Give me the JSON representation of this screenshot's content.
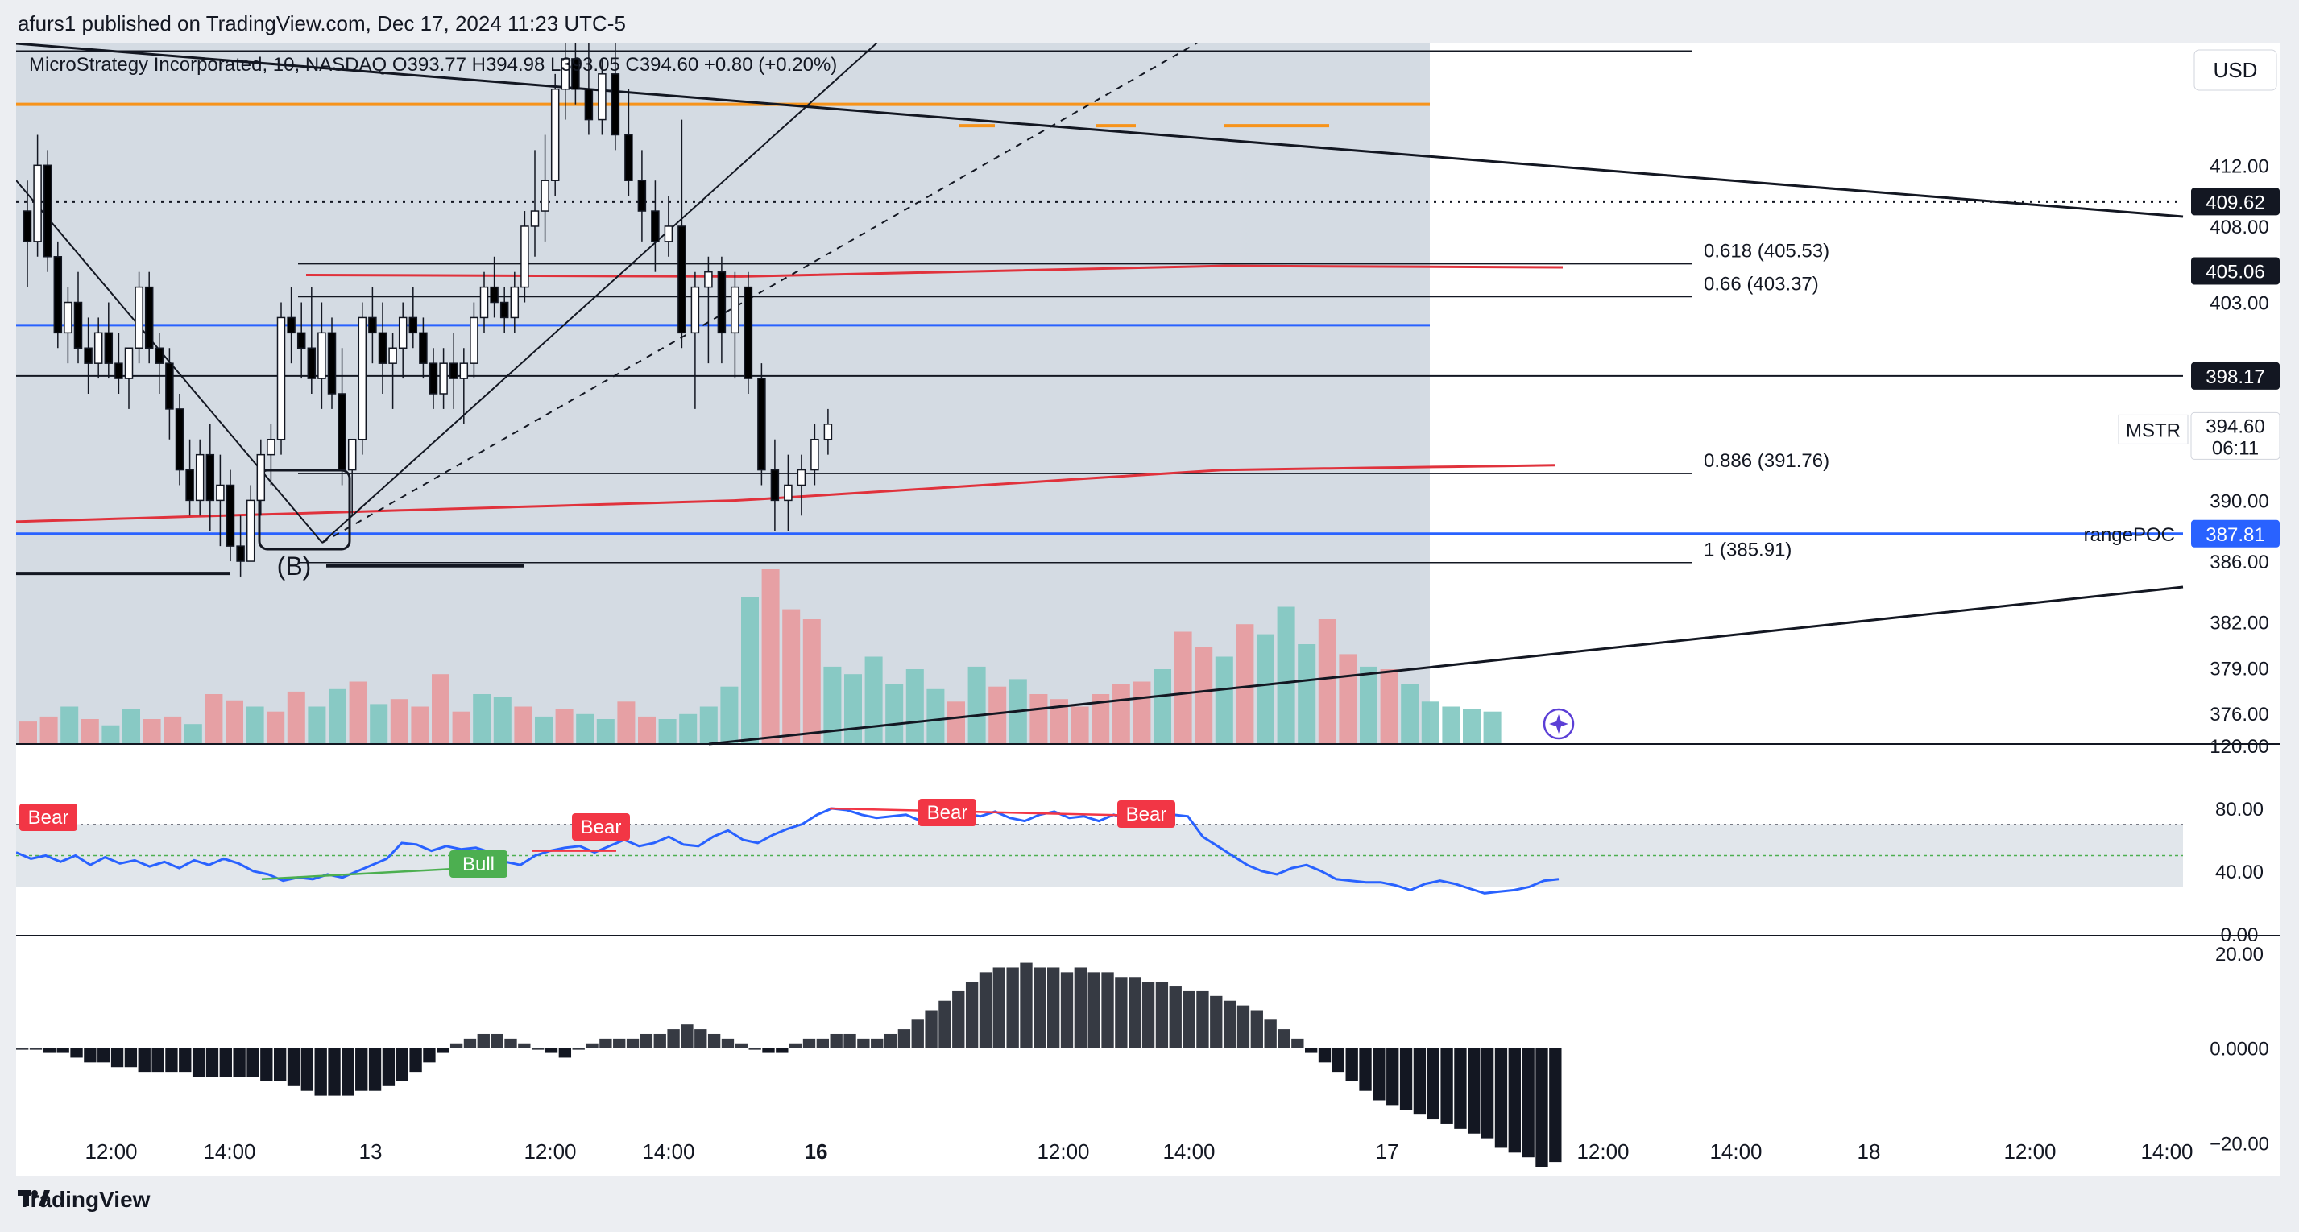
{
  "header": {
    "caption": "afurs1 published on TradingView.com, Dec 17, 2024 11:23 UTC-5"
  },
  "legend": {
    "symbol_line": "MicroStrategy Incorporated, 10, NASDAQ",
    "open": "O393.77",
    "high": "H394.98",
    "low": "L393.05",
    "close": "C394.60",
    "change": "+0.80 (+0.20%)"
  },
  "currency_button": "USD",
  "footer": {
    "brand": "TradingView"
  },
  "colors": {
    "up_candle": "#ffffff",
    "down_candle": "#000000",
    "ma_red": "#e0323c",
    "level_blue": "#2962ff",
    "orange_level": "#f7931a",
    "vol_up": "#7fc6c0",
    "vol_down": "#e8999c",
    "rsi_line": "#2962ff",
    "bear_badge": "#f23645",
    "bull_badge": "#4caf50",
    "shade": "#d4dbe3"
  },
  "chart_data": {
    "type": "candlestick",
    "symbol": "MSTR",
    "interval": "10",
    "exchange": "NASDAQ",
    "price_axis": {
      "range": [
        374,
        420
      ],
      "ticks": [
        "412.00",
        "408.00",
        "403.00",
        "390.00",
        "386.00",
        "382.00",
        "379.00",
        "376.00"
      ]
    },
    "time_axis": {
      "ticks": [
        "12:00",
        "14:00",
        "13",
        "12:00",
        "14:00",
        "16",
        "12:00",
        "14:00",
        "17",
        "12:00",
        "14:00",
        "18",
        "12:00",
        "14:00"
      ]
    },
    "price_labels": [
      {
        "text": "409.62",
        "value": 409.62,
        "style": "dark"
      },
      {
        "text": "405.06",
        "value": 405.06,
        "style": "dark"
      },
      {
        "text": "398.17",
        "value": 398.17,
        "style": "dark"
      },
      {
        "text": "394.60",
        "value": 394.6,
        "style": "light",
        "sub": "06:11",
        "tag": "MSTR"
      },
      {
        "text": "387.81",
        "value": 387.81,
        "style": "blue",
        "tag": "rangePOC"
      }
    ],
    "fib_levels": [
      {
        "label": "0.618 (405.53)",
        "value": 405.53
      },
      {
        "label": "0.66 (403.37)",
        "value": 403.37
      },
      {
        "label": "0.886 (391.76)",
        "value": 391.76
      },
      {
        "label": "1 (385.91)",
        "value": 385.91
      }
    ],
    "horizontal_levels": {
      "blue_upper": 401.5,
      "blue_poc": 387.81,
      "black_398": 398.17,
      "orange": 416.0,
      "dotted": 409.62,
      "fib_top": 419.5
    },
    "annotations": [
      {
        "text": "(B)"
      }
    ],
    "candles": [
      [
        409,
        411,
        404,
        407
      ],
      [
        407,
        414,
        406,
        412
      ],
      [
        412,
        413,
        405,
        406
      ],
      [
        406,
        407,
        400,
        401
      ],
      [
        401,
        404,
        399,
        403
      ],
      [
        403,
        405,
        399,
        400
      ],
      [
        400,
        402,
        397,
        399
      ],
      [
        399,
        402,
        398,
        401
      ],
      [
        401,
        403,
        398,
        399
      ],
      [
        399,
        401,
        397,
        398
      ],
      [
        398,
        400,
        396,
        400
      ],
      [
        400,
        405,
        399,
        404
      ],
      [
        404,
        405,
        399,
        400
      ],
      [
        400,
        401,
        397,
        399
      ],
      [
        399,
        400,
        394,
        396
      ],
      [
        396,
        397,
        391,
        392
      ],
      [
        392,
        394,
        389,
        390
      ],
      [
        390,
        394,
        389,
        393
      ],
      [
        393,
        395,
        388,
        390
      ],
      [
        390,
        393,
        387,
        391
      ],
      [
        391,
        392,
        386,
        387
      ],
      [
        387,
        389,
        385,
        386
      ],
      [
        386,
        391,
        386,
        390
      ],
      [
        390,
        394,
        389,
        393
      ],
      [
        393,
        395,
        391,
        394
      ],
      [
        394,
        403,
        393,
        402
      ],
      [
        402,
        404,
        399,
        401
      ],
      [
        401,
        403,
        398,
        400
      ],
      [
        400,
        404,
        397,
        398
      ],
      [
        398,
        403,
        396,
        401
      ],
      [
        401,
        402,
        396,
        397
      ],
      [
        397,
        400,
        391,
        392
      ],
      [
        392,
        394,
        389,
        394
      ],
      [
        394,
        403,
        393,
        402
      ],
      [
        402,
        404,
        399,
        401
      ],
      [
        401,
        403,
        397,
        399
      ],
      [
        399,
        401,
        396,
        400
      ],
      [
        400,
        403,
        398,
        402
      ],
      [
        402,
        404,
        400,
        401
      ],
      [
        401,
        402,
        398,
        399
      ],
      [
        399,
        400,
        396,
        397
      ],
      [
        397,
        400,
        396,
        399
      ],
      [
        399,
        401,
        396,
        398
      ],
      [
        398,
        400,
        395,
        399
      ],
      [
        399,
        403,
        398,
        402
      ],
      [
        402,
        405,
        401,
        404
      ],
      [
        404,
        406,
        402,
        403
      ],
      [
        403,
        404,
        401,
        402
      ],
      [
        402,
        405,
        401,
        404
      ],
      [
        404,
        409,
        403,
        408
      ],
      [
        408,
        413,
        406,
        409
      ],
      [
        409,
        414,
        407,
        411
      ],
      [
        411,
        418,
        410,
        417
      ],
      [
        417,
        420,
        415,
        419
      ],
      [
        419,
        420,
        416,
        417
      ],
      [
        417,
        420,
        414,
        415
      ],
      [
        415,
        419,
        414,
        418
      ],
      [
        418,
        420,
        413,
        414
      ],
      [
        414,
        417,
        410,
        411
      ],
      [
        411,
        413,
        407,
        409
      ],
      [
        409,
        411,
        405,
        407
      ],
      [
        407,
        410,
        406,
        408
      ],
      [
        408,
        415,
        400,
        401
      ],
      [
        401,
        405,
        396,
        404
      ],
      [
        404,
        406,
        399,
        405
      ],
      [
        405,
        406,
        399,
        401
      ],
      [
        401,
        405,
        398,
        404
      ],
      [
        404,
        405,
        397,
        398
      ],
      [
        398,
        399,
        391,
        392
      ],
      [
        392,
        394,
        388,
        390
      ],
      [
        390,
        393,
        388,
        391
      ],
      [
        391,
        393,
        389,
        392
      ],
      [
        392,
        395,
        391,
        394
      ],
      [
        394,
        396,
        393,
        395
      ]
    ],
    "volume": [
      {
        "v": 18,
        "dir": "down"
      },
      {
        "v": 22,
        "dir": "down"
      },
      {
        "v": 30,
        "dir": "up"
      },
      {
        "v": 20,
        "dir": "down"
      },
      {
        "v": 15,
        "dir": "up"
      },
      {
        "v": 28,
        "dir": "up"
      },
      {
        "v": 20,
        "dir": "down"
      },
      {
        "v": 22,
        "dir": "down"
      },
      {
        "v": 16,
        "dir": "up"
      },
      {
        "v": 40,
        "dir": "down"
      },
      {
        "v": 35,
        "dir": "down"
      },
      {
        "v": 30,
        "dir": "up"
      },
      {
        "v": 26,
        "dir": "down"
      },
      {
        "v": 42,
        "dir": "down"
      },
      {
        "v": 30,
        "dir": "up"
      },
      {
        "v": 44,
        "dir": "up"
      },
      {
        "v": 50,
        "dir": "down"
      },
      {
        "v": 32,
        "dir": "up"
      },
      {
        "v": 36,
        "dir": "down"
      },
      {
        "v": 30,
        "dir": "down"
      },
      {
        "v": 56,
        "dir": "down"
      },
      {
        "v": 26,
        "dir": "down"
      },
      {
        "v": 40,
        "dir": "up"
      },
      {
        "v": 38,
        "dir": "up"
      },
      {
        "v": 30,
        "dir": "down"
      },
      {
        "v": 22,
        "dir": "up"
      },
      {
        "v": 28,
        "dir": "down"
      },
      {
        "v": 24,
        "dir": "up"
      },
      {
        "v": 20,
        "dir": "up"
      },
      {
        "v": 34,
        "dir": "down"
      },
      {
        "v": 22,
        "dir": "down"
      },
      {
        "v": 20,
        "dir": "up"
      },
      {
        "v": 24,
        "dir": "up"
      },
      {
        "v": 30,
        "dir": "up"
      },
      {
        "v": 46,
        "dir": "up"
      },
      {
        "v": 118,
        "dir": "up"
      },
      {
        "v": 140,
        "dir": "down"
      },
      {
        "v": 108,
        "dir": "down"
      },
      {
        "v": 100,
        "dir": "down"
      },
      {
        "v": 62,
        "dir": "up"
      },
      {
        "v": 56,
        "dir": "up"
      },
      {
        "v": 70,
        "dir": "up"
      },
      {
        "v": 48,
        "dir": "up"
      },
      {
        "v": 60,
        "dir": "up"
      },
      {
        "v": 44,
        "dir": "up"
      },
      {
        "v": 34,
        "dir": "down"
      },
      {
        "v": 62,
        "dir": "up"
      },
      {
        "v": 46,
        "dir": "down"
      },
      {
        "v": 52,
        "dir": "up"
      },
      {
        "v": 40,
        "dir": "down"
      },
      {
        "v": 36,
        "dir": "down"
      },
      {
        "v": 30,
        "dir": "down"
      },
      {
        "v": 40,
        "dir": "down"
      },
      {
        "v": 48,
        "dir": "down"
      },
      {
        "v": 50,
        "dir": "down"
      },
      {
        "v": 60,
        "dir": "up"
      },
      {
        "v": 90,
        "dir": "down"
      },
      {
        "v": 78,
        "dir": "down"
      },
      {
        "v": 70,
        "dir": "up"
      },
      {
        "v": 96,
        "dir": "down"
      },
      {
        "v": 88,
        "dir": "up"
      },
      {
        "v": 110,
        "dir": "up"
      },
      {
        "v": 80,
        "dir": "up"
      },
      {
        "v": 100,
        "dir": "down"
      },
      {
        "v": 72,
        "dir": "down"
      },
      {
        "v": 62,
        "dir": "up"
      },
      {
        "v": 60,
        "dir": "down"
      },
      {
        "v": 48,
        "dir": "up"
      },
      {
        "v": 34,
        "dir": "up"
      },
      {
        "v": 30,
        "dir": "up"
      },
      {
        "v": 28,
        "dir": "up"
      },
      {
        "v": 26,
        "dir": "up"
      }
    ],
    "rsi": {
      "axis_ticks": [
        "120.00",
        "80.00",
        "40.00",
        "0.00"
      ],
      "range": [
        0,
        120
      ],
      "band": [
        30,
        70
      ],
      "midline": 50,
      "values": [
        52,
        48,
        50,
        46,
        50,
        44,
        49,
        45,
        47,
        43,
        46,
        42,
        47,
        44,
        48,
        45,
        40,
        38,
        34,
        36,
        35,
        38,
        36,
        40,
        44,
        48,
        58,
        57,
        53,
        56,
        54,
        55,
        52,
        46,
        44,
        50,
        53,
        55,
        56,
        52,
        56,
        60,
        56,
        58,
        62,
        57,
        56,
        62,
        66,
        60,
        58,
        63,
        67,
        70,
        76,
        80,
        79,
        76,
        74,
        75,
        76,
        72,
        76,
        74,
        77,
        75,
        78,
        74,
        72,
        76,
        78,
        74,
        75,
        72,
        76,
        73,
        75,
        74,
        76,
        75,
        62,
        56,
        50,
        44,
        40,
        38,
        42,
        44,
        40,
        35,
        34,
        33,
        33,
        31,
        28,
        32,
        34,
        32,
        29,
        26,
        27,
        28,
        30,
        34,
        35
      ],
      "badges": [
        {
          "text": "Bear",
          "kind": "bear"
        },
        {
          "text": "Bear",
          "kind": "bear"
        },
        {
          "text": "Bear",
          "kind": "bear"
        },
        {
          "text": "Bear",
          "kind": "bear"
        },
        {
          "text": "Bull",
          "kind": "bull"
        }
      ]
    },
    "macd": {
      "axis_ticks": [
        "20.00",
        "0.0000",
        "−20.00"
      ],
      "range": [
        -25,
        22
      ],
      "values": [
        0,
        0,
        -1,
        -1,
        -2,
        -3,
        -3,
        -4,
        -4,
        -5,
        -5,
        -5,
        -5,
        -6,
        -6,
        -6,
        -6,
        -6,
        -7,
        -7,
        -8,
        -9,
        -10,
        -10,
        -10,
        -9,
        -9,
        -8,
        -7,
        -5,
        -3,
        -1,
        1,
        2,
        3,
        3,
        2,
        1,
        0,
        -1,
        -2,
        0,
        1,
        2,
        2,
        2,
        3,
        3,
        4,
        5,
        4,
        3,
        2,
        1,
        0,
        -1,
        -1,
        1,
        2,
        2,
        3,
        3,
        2,
        2,
        3,
        4,
        6,
        8,
        10,
        12,
        14,
        16,
        17,
        17,
        18,
        17,
        17,
        16,
        17,
        16,
        16,
        15,
        15,
        14,
        14,
        13,
        12,
        12,
        11,
        10,
        9,
        8,
        6,
        4,
        2,
        -1,
        -3,
        -5,
        -7,
        -9,
        -11,
        -12,
        -13,
        -14,
        -15,
        -16,
        -17,
        -18,
        -19,
        -21,
        -22,
        -23,
        -25,
        -24
      ]
    }
  }
}
